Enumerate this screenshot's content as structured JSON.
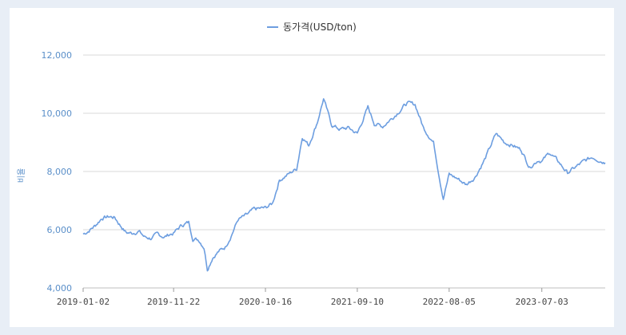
{
  "chart_data": {
    "type": "line",
    "series": [
      {
        "name": "동가격(USD/ton)",
        "color": "#6d9ee0",
        "points": [
          [
            "2019-01-02",
            5850
          ],
          [
            "2019-01-20",
            5950
          ],
          [
            "2019-02-15",
            6150
          ],
          [
            "2019-03-10",
            6400
          ],
          [
            "2019-04-05",
            6450
          ],
          [
            "2019-04-25",
            6420
          ],
          [
            "2019-05-15",
            6150
          ],
          [
            "2019-06-05",
            5900
          ],
          [
            "2019-06-25",
            5880
          ],
          [
            "2019-07-20",
            5950
          ],
          [
            "2019-08-10",
            5750
          ],
          [
            "2019-09-05",
            5700
          ],
          [
            "2019-09-25",
            5850
          ],
          [
            "2019-10-20",
            5750
          ],
          [
            "2019-11-10",
            5850
          ],
          [
            "2019-11-22",
            5880
          ],
          [
            "2019-12-20",
            6150
          ],
          [
            "2020-01-15",
            6250
          ],
          [
            "2020-01-30",
            5700
          ],
          [
            "2020-02-20",
            5650
          ],
          [
            "2020-03-10",
            5400
          ],
          [
            "2020-03-22",
            4650
          ],
          [
            "2020-04-10",
            5050
          ],
          [
            "2020-05-01",
            5250
          ],
          [
            "2020-05-25",
            5400
          ],
          [
            "2020-06-15",
            5800
          ],
          [
            "2020-07-10",
            6350
          ],
          [
            "2020-08-10",
            6500
          ],
          [
            "2020-09-05",
            6700
          ],
          [
            "2020-10-16",
            6750
          ],
          [
            "2020-11-10",
            6900
          ],
          [
            "2020-12-05",
            7700
          ],
          [
            "2021-01-05",
            7900
          ],
          [
            "2021-02-05",
            8100
          ],
          [
            "2021-02-25",
            9200
          ],
          [
            "2021-03-20",
            8900
          ],
          [
            "2021-04-20",
            9700
          ],
          [
            "2021-05-12",
            10500
          ],
          [
            "2021-06-10",
            9600
          ],
          [
            "2021-07-10",
            9450
          ],
          [
            "2021-08-10",
            9500
          ],
          [
            "2021-09-10",
            9300
          ],
          [
            "2021-10-18",
            10200
          ],
          [
            "2021-11-10",
            9650
          ],
          [
            "2021-12-10",
            9550
          ],
          [
            "2022-01-20",
            9900
          ],
          [
            "2022-03-07",
            10350
          ],
          [
            "2022-04-05",
            10300
          ],
          [
            "2022-05-05",
            9500
          ],
          [
            "2022-06-10",
            9000
          ],
          [
            "2022-07-05",
            7600
          ],
          [
            "2022-07-15",
            7100
          ],
          [
            "2022-08-05",
            7900
          ],
          [
            "2022-09-05",
            7750
          ],
          [
            "2022-10-05",
            7550
          ],
          [
            "2022-11-05",
            7800
          ],
          [
            "2022-12-10",
            8400
          ],
          [
            "2023-01-20",
            9300
          ],
          [
            "2023-02-20",
            9000
          ],
          [
            "2023-03-20",
            8900
          ],
          [
            "2023-04-20",
            8750
          ],
          [
            "2023-05-20",
            8150
          ],
          [
            "2023-06-20",
            8400
          ],
          [
            "2023-07-03",
            8350
          ],
          [
            "2023-07-31",
            8650
          ],
          [
            "2023-08-30",
            8350
          ],
          [
            "2023-10-03",
            7950
          ],
          [
            "2023-11-01",
            8150
          ],
          [
            "2023-12-01",
            8350
          ],
          [
            "2024-01-01",
            8500
          ],
          [
            "2024-02-15",
            8300
          ]
        ]
      }
    ],
    "x_ticks": [
      "2019-01-02",
      "2019-11-22",
      "2020-10-16",
      "2021-09-10",
      "2022-08-05",
      "2023-07-03"
    ],
    "y_ticks": [
      "4,000",
      "6,000",
      "8,000",
      "10,000",
      "12,000"
    ],
    "ylim": [
      4000,
      12000
    ],
    "xlim": [
      "2019-01-02",
      "2024-02-15"
    ],
    "ylabel": "비율",
    "xlabel": "",
    "grid": true,
    "legend_position": "top-center",
    "grid_color": "#d9d9d9",
    "tick_color": "#5a8fc9"
  }
}
